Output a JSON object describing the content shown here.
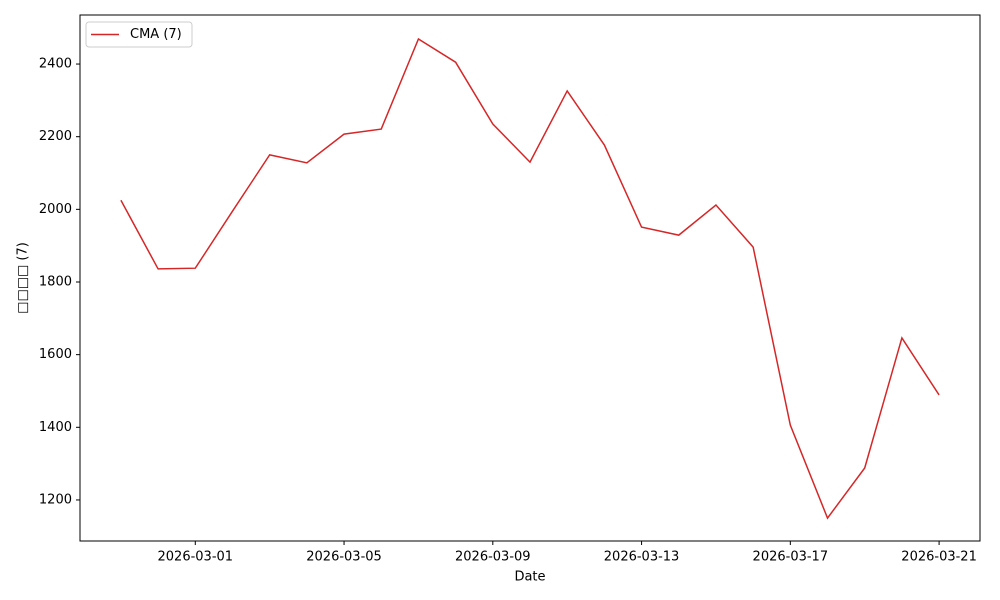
{
  "chart_data": {
    "type": "line",
    "xlabel": "Date",
    "ylabel": "□□□□ (7)",
    "x": [
      "2026-02-27",
      "2026-02-28",
      "2026-03-01",
      "2026-03-02",
      "2026-03-03",
      "2026-03-04",
      "2026-03-05",
      "2026-03-06",
      "2026-03-07",
      "2026-03-08",
      "2026-03-09",
      "2026-03-10",
      "2026-03-11",
      "2026-03-12",
      "2026-03-13",
      "2026-03-14",
      "2026-03-15",
      "2026-03-16",
      "2026-03-17",
      "2026-03-18",
      "2026-03-19",
      "2026-03-20",
      "2026-03-21"
    ],
    "series": [
      {
        "name": "CMA (7)",
        "color": "#d62728",
        "values": [
          2025,
          1836,
          1838,
          1995,
          2150,
          2128,
          2207,
          2221,
          2469,
          2405,
          2235,
          2130,
          2326,
          2177,
          1951,
          1929,
          2012,
          1896,
          1406,
          1150,
          1288,
          1646,
          1489
        ]
      }
    ],
    "xlim": [
      "2026-02-25T21:36:00Z",
      "2026-03-22T02:24:00Z"
    ],
    "xticks": [
      "2026-03-01",
      "2026-03-05",
      "2026-03-09",
      "2026-03-13",
      "2026-03-17",
      "2026-03-21"
    ],
    "ylim": [
      1087,
      2535
    ],
    "yticks": [
      1200,
      1400,
      1600,
      1800,
      2000,
      2200,
      2400
    ],
    "legend": "upper-left",
    "grid": false
  }
}
